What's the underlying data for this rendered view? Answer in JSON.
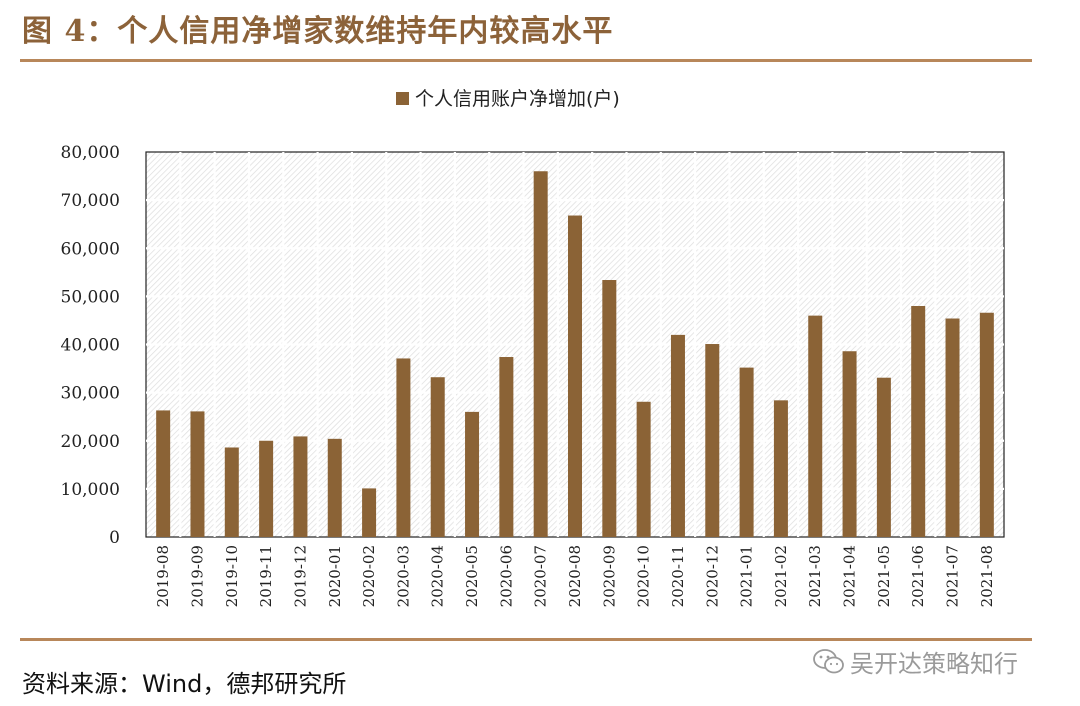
{
  "header": {
    "title": "图 4：个人信用净增家数维持年内较高水平"
  },
  "footer": {
    "source": "资料来源：Wind，德邦研究所"
  },
  "watermark": {
    "text": "吴开达策略知行",
    "icon": "wechat-icon"
  },
  "colors": {
    "accent": "#8c6239",
    "bar": "#8b6336",
    "rule": "#b8875a"
  },
  "chart_data": {
    "type": "bar",
    "categories": [
      "2019-08",
      "2019-09",
      "2019-10",
      "2019-11",
      "2019-12",
      "2020-01",
      "2020-02",
      "2020-03",
      "2020-04",
      "2020-05",
      "2020-06",
      "2020-07",
      "2020-08",
      "2020-09",
      "2020-10",
      "2020-11",
      "2020-12",
      "2021-01",
      "2021-02",
      "2021-03",
      "2021-04",
      "2021-05",
      "2021-06",
      "2021-07",
      "2021-08"
    ],
    "series": [
      {
        "name": "个人信用账户净增加(户)",
        "values": [
          26300,
          26100,
          18600,
          20000,
          20900,
          20400,
          10100,
          37100,
          33200,
          26000,
          37400,
          76000,
          66800,
          53400,
          28100,
          42000,
          40100,
          35200,
          28400,
          46000,
          38600,
          33100,
          48000,
          45400,
          46600
        ]
      }
    ],
    "yticks": [
      "0",
      "10,000",
      "20,000",
      "30,000",
      "40,000",
      "50,000",
      "60,000",
      "70,000",
      "80,000"
    ],
    "ylim": [
      0,
      80000
    ],
    "grid": true,
    "legend_position": "top-center"
  }
}
